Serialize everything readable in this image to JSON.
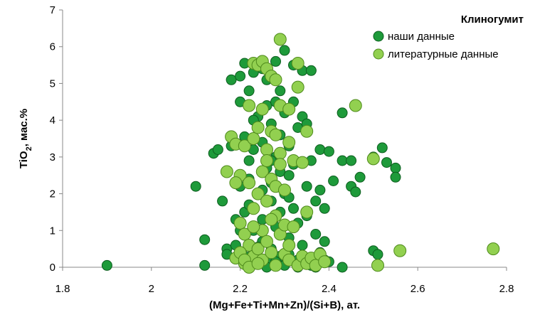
{
  "chart_data": {
    "type": "scatter",
    "title": "",
    "xlabel": "(Mg+Fe+Ti+Mn+Zn)/(Si+B), ат.",
    "ylabel_parts": {
      "pre": "TiO",
      "sub": "2",
      "post": ", мас.%"
    },
    "xlim": [
      1.8,
      2.8
    ],
    "ylim": [
      0,
      7
    ],
    "x_ticks": [
      "1.8",
      "2",
      "2.2",
      "2.4",
      "2.6",
      "2.8"
    ],
    "y_ticks": [
      "0",
      "1",
      "2",
      "3",
      "4",
      "5",
      "6",
      "7"
    ],
    "grid": false,
    "legend": {
      "title": "Клиногумит",
      "position": "top-right"
    },
    "series": [
      {
        "name": "наши данные",
        "color": "#1e9a3a",
        "edge": "#0d5e1f",
        "points": [
          [
            1.9,
            0.05
          ],
          [
            2.1,
            2.2
          ],
          [
            2.12,
            0.05
          ],
          [
            2.12,
            0.75
          ],
          [
            2.14,
            3.1
          ],
          [
            2.15,
            3.2
          ],
          [
            2.16,
            1.8
          ],
          [
            2.17,
            0.5
          ],
          [
            2.17,
            0.35
          ],
          [
            2.18,
            3.3
          ],
          [
            2.18,
            5.1
          ],
          [
            2.19,
            1.3
          ],
          [
            2.19,
            0.6
          ],
          [
            2.2,
            2.2
          ],
          [
            2.2,
            4.5
          ],
          [
            2.2,
            5.2
          ],
          [
            2.21,
            0.2
          ],
          [
            2.21,
            5.55
          ],
          [
            2.21,
            3.55
          ],
          [
            2.21,
            1.5
          ],
          [
            2.22,
            0.05
          ],
          [
            2.22,
            4.8
          ],
          [
            2.22,
            2.9
          ],
          [
            2.22,
            2.4
          ],
          [
            2.23,
            5.3
          ],
          [
            2.23,
            1.0
          ],
          [
            2.23,
            3.2
          ],
          [
            2.23,
            0.4
          ],
          [
            2.24,
            4.1
          ],
          [
            2.24,
            0.1
          ],
          [
            2.24,
            3.8
          ],
          [
            2.24,
            2.0
          ],
          [
            2.25,
            5.4
          ],
          [
            2.25,
            1.3
          ],
          [
            2.25,
            3.4
          ],
          [
            2.25,
            0.7
          ],
          [
            2.26,
            4.4
          ],
          [
            2.26,
            2.7
          ],
          [
            2.26,
            0.2
          ],
          [
            2.26,
            5.1
          ],
          [
            2.27,
            1.8
          ],
          [
            2.27,
            3.9
          ],
          [
            2.27,
            0.5
          ],
          [
            2.27,
            2.3
          ],
          [
            2.28,
            5.6
          ],
          [
            2.28,
            3.0
          ],
          [
            2.28,
            1.1
          ],
          [
            2.28,
            4.5
          ],
          [
            2.29,
            0.3
          ],
          [
            2.29,
            2.6
          ],
          [
            2.29,
            3.6
          ],
          [
            2.29,
            1.5
          ],
          [
            2.3,
            5.9
          ],
          [
            2.3,
            4.2
          ],
          [
            2.3,
            0.05
          ],
          [
            2.3,
            2.0
          ],
          [
            2.31,
            1.9
          ],
          [
            2.31,
            3.3
          ],
          [
            2.31,
            0.8
          ],
          [
            2.32,
            5.5
          ],
          [
            2.32,
            4.5
          ],
          [
            2.32,
            1.6
          ],
          [
            2.32,
            2.8
          ],
          [
            2.33,
            0.2
          ],
          [
            2.33,
            3.8
          ],
          [
            2.33,
            1.2
          ],
          [
            2.34,
            5.35
          ],
          [
            2.34,
            4.1
          ],
          [
            2.34,
            0.6
          ],
          [
            2.35,
            2.2
          ],
          [
            2.35,
            3.9
          ],
          [
            2.35,
            1.4
          ],
          [
            2.36,
            0.05
          ],
          [
            2.36,
            5.35
          ],
          [
            2.36,
            2.9
          ],
          [
            2.37,
            0.9
          ],
          [
            2.37,
            1.8
          ],
          [
            2.37,
            0.25
          ],
          [
            2.38,
            3.2
          ],
          [
            2.38,
            0.4
          ],
          [
            2.38,
            2.1
          ],
          [
            2.39,
            1.6
          ],
          [
            2.39,
            0.7
          ],
          [
            2.4,
            3.15
          ],
          [
            2.4,
            0.15
          ],
          [
            2.41,
            2.35
          ],
          [
            2.43,
            4.2
          ],
          [
            2.43,
            2.9
          ],
          [
            2.43,
            0.0
          ],
          [
            2.45,
            2.9
          ],
          [
            2.45,
            2.2
          ],
          [
            2.46,
            2.05
          ],
          [
            2.47,
            2.45
          ],
          [
            2.5,
            3.0
          ],
          [
            2.5,
            0.45
          ],
          [
            2.51,
            0.35
          ],
          [
            2.52,
            3.25
          ],
          [
            2.53,
            2.85
          ],
          [
            2.55,
            2.7
          ],
          [
            2.55,
            2.45
          ],
          [
            2.21,
            0.3
          ],
          [
            2.24,
            0.55
          ],
          [
            2.26,
            0.0
          ],
          [
            2.28,
            0.15
          ],
          [
            2.31,
            0.35
          ],
          [
            2.33,
            0.0
          ],
          [
            2.35,
            0.1
          ],
          [
            2.37,
            0.0
          ],
          [
            2.39,
            0.2
          ],
          [
            2.2,
            1.0
          ],
          [
            2.22,
            1.7
          ],
          [
            2.27,
            2.9
          ],
          [
            2.29,
            4.8
          ],
          [
            2.23,
            4.0
          ],
          [
            2.25,
            2.1
          ],
          [
            2.31,
            2.5
          ]
        ]
      },
      {
        "name": "литературные данные",
        "color": "#92d050",
        "edge": "#4e8a1c",
        "points": [
          [
            2.18,
            3.55
          ],
          [
            2.19,
            3.35
          ],
          [
            2.19,
            0.25
          ],
          [
            2.2,
            2.5
          ],
          [
            2.2,
            1.2
          ],
          [
            2.21,
            0.9
          ],
          [
            2.21,
            3.3
          ],
          [
            2.21,
            0.1
          ],
          [
            2.22,
            4.4
          ],
          [
            2.22,
            2.3
          ],
          [
            2.22,
            0.6
          ],
          [
            2.23,
            5.55
          ],
          [
            2.23,
            3.5
          ],
          [
            2.23,
            1.6
          ],
          [
            2.23,
            0.3
          ],
          [
            2.24,
            5.5
          ],
          [
            2.24,
            3.8
          ],
          [
            2.24,
            2.0
          ],
          [
            2.24,
            0.5
          ],
          [
            2.25,
            5.6
          ],
          [
            2.25,
            4.3
          ],
          [
            2.25,
            2.6
          ],
          [
            2.25,
            1.0
          ],
          [
            2.25,
            0.2
          ],
          [
            2.26,
            5.4
          ],
          [
            2.26,
            3.2
          ],
          [
            2.26,
            1.8
          ],
          [
            2.26,
            0.7
          ],
          [
            2.27,
            5.2
          ],
          [
            2.27,
            3.7
          ],
          [
            2.27,
            2.4
          ],
          [
            2.27,
            0.4
          ],
          [
            2.28,
            5.1
          ],
          [
            2.28,
            3.6
          ],
          [
            2.28,
            2.2
          ],
          [
            2.28,
            1.4
          ],
          [
            2.28,
            0.05
          ],
          [
            2.29,
            6.2
          ],
          [
            2.29,
            4.4
          ],
          [
            2.29,
            3.1
          ],
          [
            2.29,
            0.9
          ],
          [
            2.3,
            2.1
          ],
          [
            2.3,
            1.15
          ],
          [
            2.3,
            0.35
          ],
          [
            2.31,
            4.3
          ],
          [
            2.31,
            3.4
          ],
          [
            2.31,
            0.2
          ],
          [
            2.32,
            2.9
          ],
          [
            2.32,
            1.1
          ],
          [
            2.33,
            5.55
          ],
          [
            2.33,
            4.9
          ],
          [
            2.33,
            0.05
          ],
          [
            2.34,
            2.85
          ],
          [
            2.34,
            0.3
          ],
          [
            2.35,
            3.7
          ],
          [
            2.35,
            1.5
          ],
          [
            2.35,
            0.1
          ],
          [
            2.36,
            0.25
          ],
          [
            2.37,
            0.05
          ],
          [
            2.38,
            0.35
          ],
          [
            2.39,
            0.15
          ],
          [
            2.46,
            4.4
          ],
          [
            2.5,
            2.95
          ],
          [
            2.51,
            0.05
          ],
          [
            2.56,
            0.45
          ],
          [
            2.77,
            0.5
          ],
          [
            2.17,
            2.6
          ],
          [
            2.19,
            2.3
          ],
          [
            2.2,
            0.4
          ],
          [
            2.21,
            0.2
          ],
          [
            2.22,
            0.0
          ],
          [
            2.23,
            1.1
          ],
          [
            2.24,
            0.1
          ],
          [
            2.26,
            2.9
          ],
          [
            2.27,
            1.3
          ],
          [
            2.29,
            2.8
          ],
          [
            2.31,
            0.6
          ]
        ]
      }
    ]
  }
}
